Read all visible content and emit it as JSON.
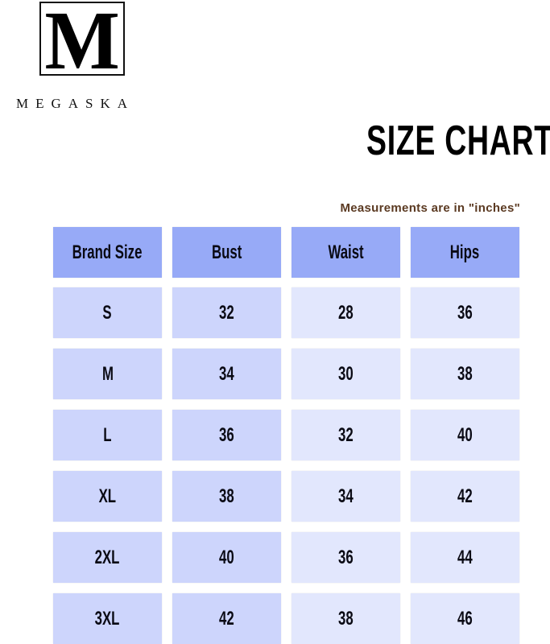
{
  "logo": {
    "mark": "M",
    "brand": "MEGASKA"
  },
  "title": "SIZE CHART",
  "note": "Measurements are in \"inches\"",
  "colors": {
    "header": "#97aaf7",
    "cell_dark": "#cdd5fc",
    "cell_light": "#e2e7fd",
    "note": "#5b3a22"
  },
  "table": {
    "headers": [
      "Brand Size",
      "Bust",
      "Waist",
      "Hips"
    ],
    "rows": [
      [
        "S",
        "32",
        "28",
        "36"
      ],
      [
        "M",
        "34",
        "30",
        "38"
      ],
      [
        "L",
        "36",
        "32",
        "40"
      ],
      [
        "XL",
        "38",
        "34",
        "42"
      ],
      [
        "2XL",
        "40",
        "36",
        "44"
      ],
      [
        "3XL",
        "42",
        "38",
        "46"
      ]
    ]
  }
}
